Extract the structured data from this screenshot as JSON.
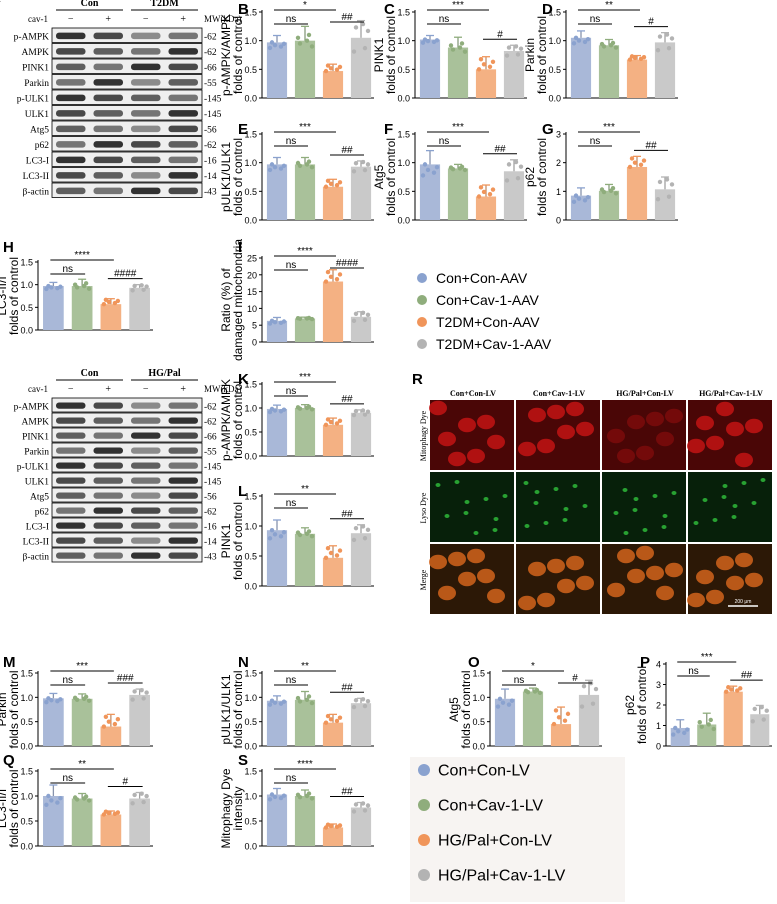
{
  "colors": {
    "con_aav": "#a9b8d8",
    "cav_aav": "#a9c19a",
    "t2dm_aav": "#f4b183",
    "cavt2dm_aav": "#c9c9c9",
    "dot_blue": "#8aa2cf",
    "dot_green": "#8fad7c",
    "dot_orange": "#f0955a",
    "dot_gray": "#b3b3b3",
    "red_panel": "#3a0505",
    "green_panel": "#061c06",
    "merge_panel": "#2a1805"
  },
  "blot_top": {
    "letter": "A",
    "group1": "Con",
    "group2": "T2DM",
    "cav_label": "cav-1",
    "signs": [
      "−",
      "+",
      "−",
      "+"
    ],
    "mw_label": "MW(kDa)",
    "rows": [
      {
        "name": "p-AMPK",
        "mw": "62"
      },
      {
        "name": "AMPK",
        "mw": "62"
      },
      {
        "name": "PINK1",
        "mw": "66"
      },
      {
        "name": "Parkin",
        "mw": "55"
      },
      {
        "name": "p-ULK1",
        "mw": "145"
      },
      {
        "name": "ULK1",
        "mw": "145"
      },
      {
        "name": "Atg5",
        "mw": "56"
      },
      {
        "name": "p62",
        "mw": "62"
      },
      {
        "name": "LC3-I",
        "mw": "16"
      },
      {
        "name": "LC3-II",
        "mw": "14"
      },
      {
        "name": "β-actin",
        "mw": "43"
      }
    ]
  },
  "blot_bottom": {
    "letter": "J",
    "group1": "Con",
    "group2": "HG/Pal",
    "cav_label": "cav-1",
    "signs": [
      "−",
      "+",
      "−",
      "+"
    ],
    "mw_label": "MW(kDa)",
    "rows": [
      {
        "name": "p-AMPK",
        "mw": "62"
      },
      {
        "name": "AMPK",
        "mw": "62"
      },
      {
        "name": "PINK1",
        "mw": "66"
      },
      {
        "name": "Parkin",
        "mw": "55"
      },
      {
        "name": "p-ULK1",
        "mw": "145"
      },
      {
        "name": "ULK1",
        "mw": "145"
      },
      {
        "name": "Atg5",
        "mw": "56"
      },
      {
        "name": "p62",
        "mw": "62"
      },
      {
        "name": "LC3-I",
        "mw": "16"
      },
      {
        "name": "LC3-II",
        "mw": "14"
      },
      {
        "name": "β-actin",
        "mw": "43"
      }
    ]
  },
  "legend_top": [
    "Con+Con-AAV",
    "Con+Cav-1-AAV",
    "T2DM+Con-AAV",
    "T2DM+Cav-1-AAV"
  ],
  "legend_bottom": [
    "Con+Con-LV",
    "Con+Cav-1-LV",
    "HG/Pal+Con-LV",
    "HG/Pal+Cav-1-LV"
  ],
  "micro": {
    "letter": "R",
    "columns": [
      "Con+Con-LV",
      "Con+Cav-1-LV",
      "HG/Pal+Con-LV",
      "HG/Pal+Cav-1-LV"
    ],
    "rows": [
      "Mitophagy Dye",
      "Lyso Dye",
      "Merge"
    ],
    "scale_label": "200 μm"
  },
  "chart_data": [
    {
      "id": "B",
      "type": "bar",
      "ylabel": [
        "p-AMPK/AMPK",
        "folds of control"
      ],
      "ylim": [
        0,
        1.5
      ],
      "ticks": [
        "0.0",
        "0.5",
        "1.0",
        "1.5"
      ],
      "categories": [
        "Con+Con-AAV",
        "Con+Cav-1-AAV",
        "T2DM+Con-AAV",
        "T2DM+Cav-1-AAV"
      ],
      "values": [
        0.97,
        1.0,
        0.47,
        1.05
      ],
      "errors": [
        0.12,
        0.25,
        0.12,
        0.3
      ],
      "sig": [
        {
          "from": 0,
          "to": 2,
          "label": "*"
        },
        {
          "from": 0,
          "to": 1,
          "label": "ns"
        },
        {
          "from": 2,
          "to": 3,
          "label": "##"
        }
      ]
    },
    {
      "id": "C",
      "type": "bar",
      "ylabel": [
        "PINK1",
        "folds of control"
      ],
      "ylim": [
        0,
        1.5
      ],
      "ticks": [
        "0.0",
        "0.5",
        "1.0",
        "1.5"
      ],
      "categories": [
        "Con+Con-AAV",
        "Con+Cav-1-AAV",
        "T2DM+Con-AAV",
        "T2DM+Cav-1-AAV"
      ],
      "values": [
        1.02,
        0.88,
        0.5,
        0.82
      ],
      "errors": [
        0.07,
        0.18,
        0.22,
        0.1
      ],
      "sig": [
        {
          "from": 0,
          "to": 2,
          "label": "***"
        },
        {
          "from": 0,
          "to": 1,
          "label": "ns"
        },
        {
          "from": 2,
          "to": 3,
          "label": "#"
        }
      ]
    },
    {
      "id": "D",
      "type": "bar",
      "ylabel": [
        "Parkin",
        "folds of control"
      ],
      "ylim": [
        0,
        1.5
      ],
      "ticks": [
        "0.0",
        "0.5",
        "1.0",
        "1.5"
      ],
      "categories": [
        "Con+Con-AAV",
        "Con+Cav-1-AAV",
        "T2DM+Con-AAV",
        "T2DM+Cav-1-AAV"
      ],
      "values": [
        1.05,
        0.92,
        0.67,
        0.97
      ],
      "errors": [
        0.12,
        0.1,
        0.07,
        0.17
      ],
      "sig": [
        {
          "from": 0,
          "to": 2,
          "label": "**"
        },
        {
          "from": 0,
          "to": 1,
          "label": "ns"
        },
        {
          "from": 2,
          "to": 3,
          "label": "#"
        }
      ]
    },
    {
      "id": "E",
      "type": "bar",
      "ylabel": [
        "pULK1/ULK1",
        "folds of control"
      ],
      "ylim": [
        0,
        1.5
      ],
      "ticks": [
        "0.0",
        "0.5",
        "1.0",
        "1.5"
      ],
      "categories": [
        "Con+Con-AAV",
        "Con+Cav-1-AAV",
        "T2DM+Con-AAV",
        "T2DM+Cav-1-AAV"
      ],
      "values": [
        0.97,
        0.97,
        0.58,
        0.93
      ],
      "errors": [
        0.12,
        0.12,
        0.13,
        0.1
      ],
      "sig": [
        {
          "from": 0,
          "to": 2,
          "label": "***"
        },
        {
          "from": 0,
          "to": 1,
          "label": "ns"
        },
        {
          "from": 2,
          "to": 3,
          "label": "##"
        }
      ]
    },
    {
      "id": "F",
      "type": "bar",
      "ylabel": [
        "Atg5",
        "folds of control"
      ],
      "ylim": [
        0,
        1.5
      ],
      "ticks": [
        "0.0",
        "0.5",
        "1.0",
        "1.5"
      ],
      "categories": [
        "Con+Con-AAV",
        "Con+Cav-1-AAV",
        "T2DM+Con-AAV",
        "T2DM+Cav-1-AAV"
      ],
      "values": [
        0.97,
        0.9,
        0.41,
        0.85
      ],
      "errors": [
        0.24,
        0.07,
        0.2,
        0.2
      ],
      "sig": [
        {
          "from": 0,
          "to": 2,
          "label": "***"
        },
        {
          "from": 0,
          "to": 1,
          "label": "ns"
        },
        {
          "from": 2,
          "to": 3,
          "label": "##"
        }
      ]
    },
    {
      "id": "G",
      "type": "bar",
      "ylabel": [
        "p62",
        "folds of control"
      ],
      "ylim": [
        0,
        3
      ],
      "ticks": [
        "0",
        "1",
        "2",
        "3"
      ],
      "categories": [
        "Con+Con-AAV",
        "Con+Cav-1-AAV",
        "T2DM+Con-AAV",
        "T2DM+Cav-1-AAV"
      ],
      "values": [
        0.85,
        1.02,
        1.85,
        1.07
      ],
      "errors": [
        0.27,
        0.22,
        0.37,
        0.43
      ],
      "sig": [
        {
          "from": 0,
          "to": 2,
          "label": "***"
        },
        {
          "from": 0,
          "to": 1,
          "label": "ns"
        },
        {
          "from": 2,
          "to": 3,
          "label": "##"
        }
      ]
    },
    {
      "id": "H",
      "type": "bar",
      "ylabel": [
        "LC3-II/I",
        "folds of control"
      ],
      "ylim": [
        0,
        1.5
      ],
      "ticks": [
        "0.0",
        "0.5",
        "1.0",
        "1.5"
      ],
      "categories": [
        "Con+Con-AAV",
        "Con+Cav-1-AAV",
        "T2DM+Con-AAV",
        "T2DM+Cav-1-AAV"
      ],
      "values": [
        0.97,
        0.97,
        0.57,
        0.93
      ],
      "errors": [
        0.08,
        0.15,
        0.12,
        0.07
      ],
      "sig": [
        {
          "from": 0,
          "to": 2,
          "label": "****"
        },
        {
          "from": 0,
          "to": 1,
          "label": "ns"
        },
        {
          "from": 2,
          "to": 3,
          "label": "####"
        }
      ]
    },
    {
      "id": "I",
      "type": "bar",
      "ylabel": [
        "Ratio (%) of",
        "damaged mitochondria"
      ],
      "ylim": [
        0,
        25
      ],
      "ticks": [
        "0",
        "5",
        "10",
        "15",
        "20",
        "25"
      ],
      "categories": [
        "Con+Con-AAV",
        "Con+Cav-1-AAV",
        "T2DM+Con-AAV",
        "T2DM+Cav-1-AAV"
      ],
      "values": [
        6.3,
        7.0,
        18.0,
        7.5
      ],
      "errors": [
        1.0,
        0.4,
        3.5,
        1.5
      ],
      "sig": [
        {
          "from": 0,
          "to": 2,
          "label": "****"
        },
        {
          "from": 0,
          "to": 1,
          "label": "ns"
        },
        {
          "from": 2,
          "to": 3,
          "label": "####"
        }
      ]
    },
    {
      "id": "K",
      "type": "bar",
      "ylabel": [
        "p-AMPK/AMPK",
        "folds of control"
      ],
      "ylim": [
        0,
        1.5
      ],
      "ticks": [
        "0.0",
        "0.5",
        "1.0",
        "1.5"
      ],
      "categories": [
        "Con+Con-LV",
        "Con+Cav-1-LV",
        "HG/Pal+Con-LV",
        "HG/Pal+Cav-1-LV"
      ],
      "values": [
        0.98,
        1.0,
        0.65,
        0.9
      ],
      "errors": [
        0.08,
        0.07,
        0.14,
        0.06
      ],
      "sig": [
        {
          "from": 0,
          "to": 2,
          "label": "***"
        },
        {
          "from": 0,
          "to": 1,
          "label": "ns"
        },
        {
          "from": 2,
          "to": 3,
          "label": "##"
        }
      ]
    },
    {
      "id": "L",
      "type": "bar",
      "ylabel": [
        "PINK1",
        "folds of control"
      ],
      "ylim": [
        0,
        1.5
      ],
      "ticks": [
        "0.0",
        "0.5",
        "1.0",
        "1.5"
      ],
      "categories": [
        "Con+Con-LV",
        "Con+Cav-1-LV",
        "HG/Pal+Con-LV",
        "HG/Pal+Cav-1-LV"
      ],
      "values": [
        0.93,
        0.87,
        0.47,
        0.88
      ],
      "errors": [
        0.17,
        0.1,
        0.2,
        0.14
      ],
      "sig": [
        {
          "from": 0,
          "to": 2,
          "label": "**"
        },
        {
          "from": 0,
          "to": 1,
          "label": "ns"
        },
        {
          "from": 2,
          "to": 3,
          "label": "##"
        }
      ]
    },
    {
      "id": "M",
      "type": "bar",
      "ylabel": [
        "Parkin",
        "folds of control"
      ],
      "ylim": [
        0,
        1.5
      ],
      "ticks": [
        "0.0",
        "0.5",
        "1.0",
        "1.5"
      ],
      "categories": [
        "Con+Con-LV",
        "Con+Cav-1-LV",
        "HG/Pal+Con-LV",
        "HG/Pal+Cav-1-LV"
      ],
      "values": [
        0.98,
        0.97,
        0.4,
        1.05
      ],
      "errors": [
        0.1,
        0.1,
        0.25,
        0.12
      ],
      "sig": [
        {
          "from": 0,
          "to": 2,
          "label": "***"
        },
        {
          "from": 0,
          "to": 1,
          "label": "ns"
        },
        {
          "from": 2,
          "to": 3,
          "label": "###"
        }
      ]
    },
    {
      "id": "N",
      "type": "bar",
      "ylabel": [
        "pULK1/ULK1",
        "folds of control"
      ],
      "ylim": [
        0,
        1.5
      ],
      "ticks": [
        "0.0",
        "0.5",
        "1.0",
        "1.5"
      ],
      "categories": [
        "Con+Con-LV",
        "Con+Cav-1-LV",
        "HG/Pal+Con-LV",
        "HG/Pal+Cav-1-LV"
      ],
      "values": [
        0.93,
        0.95,
        0.48,
        0.88
      ],
      "errors": [
        0.1,
        0.17,
        0.17,
        0.1
      ],
      "sig": [
        {
          "from": 0,
          "to": 2,
          "label": "**"
        },
        {
          "from": 0,
          "to": 1,
          "label": "ns"
        },
        {
          "from": 2,
          "to": 3,
          "label": "##"
        }
      ]
    },
    {
      "id": "O",
      "type": "bar",
      "ylabel": [
        "Atg5",
        "folds of control"
      ],
      "ylim": [
        0,
        1.5
      ],
      "ticks": [
        "0.0",
        "0.5",
        "1.0",
        "1.5"
      ],
      "categories": [
        "Con+Con-LV",
        "Con+Cav-1-LV",
        "HG/Pal+Con-LV",
        "HG/Pal+Cav-1-LV"
      ],
      "values": [
        0.97,
        1.12,
        0.45,
        1.05
      ],
      "errors": [
        0.2,
        0.07,
        0.35,
        0.3
      ],
      "sig": [
        {
          "from": 0,
          "to": 2,
          "label": "*"
        },
        {
          "from": 0,
          "to": 1,
          "label": "ns"
        },
        {
          "from": 2,
          "to": 3,
          "label": "#"
        }
      ]
    },
    {
      "id": "P",
      "type": "bar",
      "ylabel": [
        "p62",
        "folds of control"
      ],
      "ylim": [
        0,
        4
      ],
      "ticks": [
        "0",
        "1",
        "2",
        "3",
        "4"
      ],
      "categories": [
        "Con+Con-LV",
        "Con+Cav-1-LV",
        "HG/Pal+Con-LV",
        "HG/Pal+Cav-1-LV"
      ],
      "values": [
        0.88,
        1.05,
        2.65,
        1.55
      ],
      "errors": [
        0.4,
        0.55,
        0.27,
        0.43
      ],
      "sig": [
        {
          "from": 0,
          "to": 2,
          "label": "***"
        },
        {
          "from": 0,
          "to": 1,
          "label": "ns"
        },
        {
          "from": 2,
          "to": 3,
          "label": "##"
        }
      ]
    },
    {
      "id": "Q",
      "type": "bar",
      "ylabel": [
        "LC3-II/I",
        "folds of control"
      ],
      "ylim": [
        0,
        1.5
      ],
      "ticks": [
        "0.0",
        "0.5",
        "1.0",
        "1.5"
      ],
      "categories": [
        "Con+Con-LV",
        "Con+Cav-1-LV",
        "HG/Pal+Con-LV",
        "HG/Pal+Cav-1-LV"
      ],
      "values": [
        1.0,
        0.95,
        0.63,
        0.95
      ],
      "errors": [
        0.22,
        0.1,
        0.07,
        0.12
      ],
      "sig": [
        {
          "from": 0,
          "to": 2,
          "label": "**"
        },
        {
          "from": 0,
          "to": 1,
          "label": "ns"
        },
        {
          "from": 2,
          "to": 3,
          "label": "#"
        }
      ]
    },
    {
      "id": "S",
      "type": "bar",
      "ylabel": [
        "Mitophagy Dye",
        "intensity"
      ],
      "ylim": [
        0,
        1.5
      ],
      "ticks": [
        "0.0",
        "0.5",
        "1.0",
        "1.5"
      ],
      "categories": [
        "Con+Con-LV",
        "Con+Cav-1-LV",
        "HG/Pal+Con-LV",
        "HG/Pal+Cav-1-LV"
      ],
      "values": [
        1.03,
        1.0,
        0.37,
        0.77
      ],
      "errors": [
        0.12,
        0.12,
        0.07,
        0.1
      ],
      "sig": [
        {
          "from": 0,
          "to": 2,
          "label": "****"
        },
        {
          "from": 0,
          "to": 1,
          "label": "ns"
        },
        {
          "from": 2,
          "to": 3,
          "label": "##"
        }
      ]
    }
  ]
}
